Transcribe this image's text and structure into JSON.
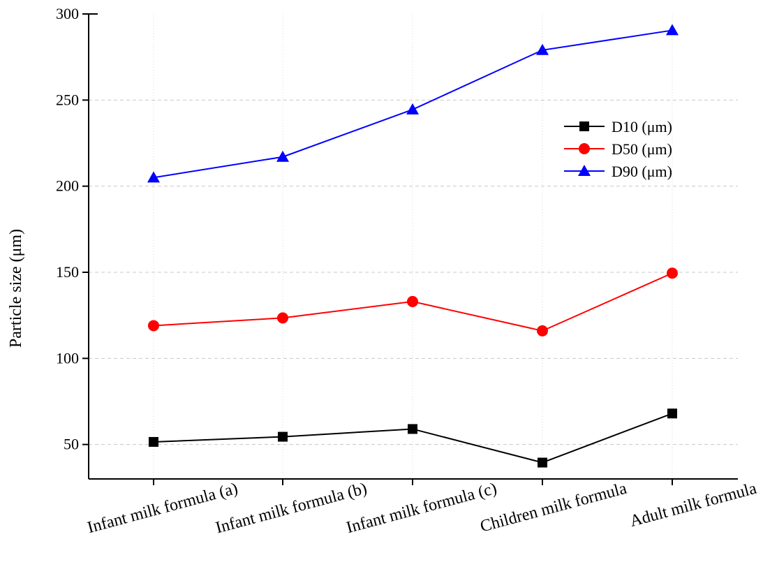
{
  "chart_data": {
    "type": "line",
    "title": "",
    "xlabel": "",
    "ylabel": "Particle size (μm)",
    "ylim": [
      30,
      300
    ],
    "yticks": [
      50,
      100,
      150,
      200,
      250,
      300
    ],
    "grid": true,
    "legend_position": "top-right",
    "categories": [
      "Infant milk formula (a)",
      "Infant milk  formula (b)",
      "Infant milk  formula (c)",
      "Children milk formula",
      "Adult milk formula"
    ],
    "series": [
      {
        "name": "D10 (μm)",
        "color": "#000000",
        "marker": "square",
        "values": [
          51.5,
          54.5,
          59,
          39.5,
          68
        ]
      },
      {
        "name": "D50 (μm)",
        "color": "#ff0000",
        "marker": "circle",
        "values": [
          119,
          123.5,
          133,
          116,
          149.5
        ]
      },
      {
        "name": "D90 (μm)",
        "color": "#0000ff",
        "marker": "triangle",
        "values": [
          205,
          217,
          244.5,
          279,
          290.5
        ]
      }
    ]
  }
}
